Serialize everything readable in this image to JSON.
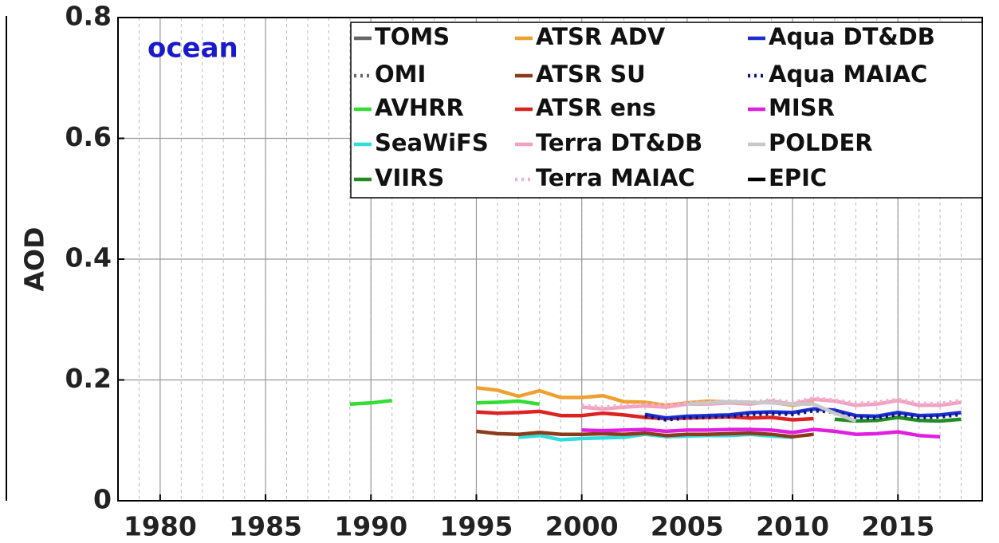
{
  "chart_data": {
    "type": "line",
    "ylabel": "AOD",
    "annotation": "ocean",
    "annotation_color": "#1a1acc",
    "x": [
      1989,
      1990,
      1991,
      1992,
      1993,
      1994,
      1995,
      1996,
      1997,
      1998,
      1999,
      2000,
      2001,
      2002,
      2003,
      2004,
      2005,
      2006,
      2007,
      2008,
      2009,
      2010,
      2011,
      2012,
      2013,
      2014,
      2015,
      2016,
      2017,
      2018
    ],
    "xlim": [
      1978,
      2019
    ],
    "xticks": [
      1980,
      1985,
      1990,
      1995,
      2000,
      2005,
      2010,
      2015
    ],
    "ylim": [
      0,
      0.8
    ],
    "yticks": [
      0,
      0.2,
      0.4,
      0.6,
      0.8
    ],
    "grid": true,
    "minor_grid": true,
    "legend": "upper right",
    "series": [
      {
        "name": "TOMS",
        "color": "#666666",
        "values": [
          null,
          null,
          null,
          null,
          null,
          null,
          null,
          null,
          null,
          null,
          null,
          null,
          null,
          null,
          null,
          null,
          null,
          null,
          null,
          null,
          null,
          null,
          null,
          null,
          null,
          null,
          null,
          null,
          null,
          null
        ]
      },
      {
        "name": "OMI",
        "color": "#666666",
        "dashed": true,
        "values": [
          null,
          null,
          null,
          null,
          null,
          null,
          null,
          null,
          null,
          null,
          null,
          null,
          null,
          null,
          null,
          null,
          null,
          null,
          null,
          null,
          null,
          null,
          null,
          null,
          null,
          null,
          null,
          null,
          null,
          null
        ]
      },
      {
        "name": "AVHRR",
        "color": "#33dd33",
        "values": [
          0.16,
          0.162,
          0.166,
          null,
          null,
          null,
          0.162,
          0.163,
          0.165,
          0.16,
          null,
          null,
          null,
          null,
          null,
          null,
          null,
          null,
          null,
          null,
          null,
          null,
          null,
          null,
          null,
          null,
          null,
          null,
          null,
          null
        ]
      },
      {
        "name": "SeaWiFS",
        "color": "#33dddd",
        "values": [
          null,
          null,
          null,
          null,
          null,
          null,
          null,
          null,
          0.105,
          0.108,
          0.101,
          0.103,
          0.104,
          0.105,
          0.11,
          0.106,
          0.107,
          0.108,
          0.108,
          0.11,
          0.107,
          0.105,
          null,
          null,
          null,
          null,
          null,
          null,
          null,
          null
        ]
      },
      {
        "name": "VIIRS",
        "color": "#228b22",
        "values": [
          null,
          null,
          null,
          null,
          null,
          null,
          null,
          null,
          null,
          null,
          null,
          null,
          null,
          null,
          null,
          null,
          null,
          null,
          null,
          null,
          null,
          null,
          null,
          0.135,
          0.132,
          0.133,
          0.138,
          0.133,
          0.132,
          0.135
        ]
      },
      {
        "name": "ATSR ADV",
        "color": "#f0a030",
        "values": [
          null,
          null,
          null,
          null,
          null,
          null,
          0.187,
          0.183,
          0.173,
          0.182,
          0.171,
          0.171,
          0.174,
          0.164,
          0.163,
          0.158,
          0.162,
          0.165,
          0.163,
          0.162,
          0.163,
          0.158,
          0.163,
          null,
          null,
          null,
          null,
          null,
          null,
          null
        ]
      },
      {
        "name": "ATSR SU",
        "color": "#8b3a1a",
        "values": [
          null,
          null,
          null,
          null,
          null,
          null,
          0.115,
          0.111,
          0.11,
          0.113,
          0.11,
          0.11,
          0.111,
          0.11,
          0.112,
          0.108,
          0.11,
          0.11,
          0.111,
          0.112,
          0.11,
          0.106,
          0.11,
          null,
          null,
          null,
          null,
          null,
          null,
          null
        ]
      },
      {
        "name": "ATSR ens",
        "color": "#dd2222",
        "values": [
          null,
          null,
          null,
          null,
          null,
          null,
          0.147,
          0.145,
          0.146,
          0.148,
          0.141,
          0.141,
          0.145,
          0.142,
          0.138,
          0.136,
          0.137,
          0.138,
          0.139,
          0.137,
          0.138,
          0.134,
          0.136,
          null,
          null,
          null,
          null,
          null,
          null,
          null
        ]
      },
      {
        "name": "Terra DT&DB",
        "color": "#f4a0c0",
        "values": [
          null,
          null,
          null,
          null,
          null,
          null,
          null,
          null,
          null,
          null,
          null,
          0.155,
          0.152,
          0.155,
          0.157,
          0.155,
          0.16,
          0.16,
          0.162,
          0.16,
          0.165,
          0.16,
          0.168,
          0.165,
          0.158,
          0.16,
          0.166,
          0.158,
          0.158,
          0.163
        ]
      },
      {
        "name": "Terra MAIAC",
        "color": "#f0b0d0",
        "dashed": true,
        "values": [
          null,
          null,
          null,
          null,
          null,
          null,
          null,
          null,
          null,
          null,
          null,
          0.158,
          0.155,
          0.158,
          0.16,
          0.158,
          0.163,
          0.163,
          0.165,
          0.163,
          0.167,
          0.163,
          0.17,
          0.167,
          0.161,
          0.163,
          0.168,
          0.161,
          0.161,
          0.166
        ]
      },
      {
        "name": "Aqua DT&DB",
        "color": "#1a2fd0",
        "values": [
          null,
          null,
          null,
          null,
          null,
          null,
          null,
          null,
          null,
          null,
          null,
          null,
          null,
          null,
          0.143,
          0.137,
          0.14,
          0.141,
          0.142,
          0.146,
          0.147,
          0.146,
          0.152,
          0.15,
          0.141,
          0.14,
          0.146,
          0.141,
          0.142,
          0.146
        ]
      },
      {
        "name": "Aqua MAIAC",
        "color": "#101080",
        "dashed": true,
        "values": [
          null,
          null,
          null,
          null,
          null,
          null,
          null,
          null,
          null,
          null,
          null,
          null,
          null,
          null,
          0.14,
          0.134,
          0.137,
          0.138,
          0.139,
          0.143,
          0.144,
          0.143,
          0.149,
          0.147,
          0.138,
          0.137,
          0.143,
          0.138,
          0.139,
          0.143
        ]
      },
      {
        "name": "MISR",
        "color": "#e020e0",
        "values": [
          null,
          null,
          null,
          null,
          null,
          null,
          null,
          null,
          null,
          null,
          null,
          0.117,
          0.116,
          0.117,
          0.118,
          0.115,
          0.117,
          0.117,
          0.118,
          0.118,
          0.117,
          0.113,
          0.118,
          0.115,
          0.11,
          0.111,
          0.114,
          0.108,
          0.106,
          null
        ]
      },
      {
        "name": "POLDER",
        "color": "#c8c8c8",
        "values": [
          null,
          null,
          null,
          null,
          null,
          null,
          null,
          null,
          null,
          null,
          null,
          null,
          null,
          null,
          null,
          null,
          0.16,
          0.162,
          0.164,
          0.163,
          0.162,
          0.16,
          0.16,
          0.145,
          0.132,
          null,
          null,
          null,
          null,
          null
        ]
      },
      {
        "name": "EPIC",
        "color": "#000000",
        "values": [
          null,
          null,
          null,
          null,
          null,
          null,
          null,
          null,
          null,
          null,
          null,
          null,
          null,
          null,
          null,
          null,
          null,
          null,
          null,
          null,
          null,
          null,
          null,
          null,
          null,
          null,
          null,
          null,
          null,
          null
        ]
      }
    ]
  }
}
